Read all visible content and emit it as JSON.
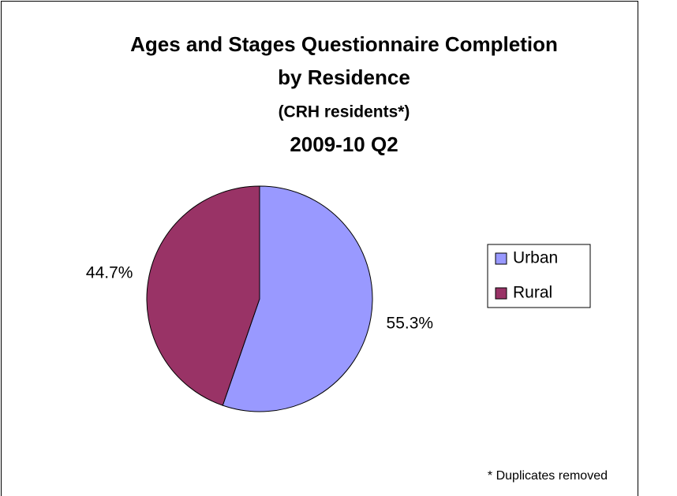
{
  "chart_data": {
    "type": "pie",
    "title": [
      "Ages and Stages Questionnaire Completion",
      "by Residence"
    ],
    "subtitle": [
      "(CRH residents*)",
      "2009-10 Q2"
    ],
    "categories": [
      "Urban",
      "Rural"
    ],
    "values": [
      55.3,
      44.7
    ],
    "value_labels": [
      "55.3%",
      "44.7%"
    ],
    "colors": [
      "#9999ff",
      "#993366"
    ],
    "legend": "right",
    "annotation": "* Duplicates removed"
  }
}
